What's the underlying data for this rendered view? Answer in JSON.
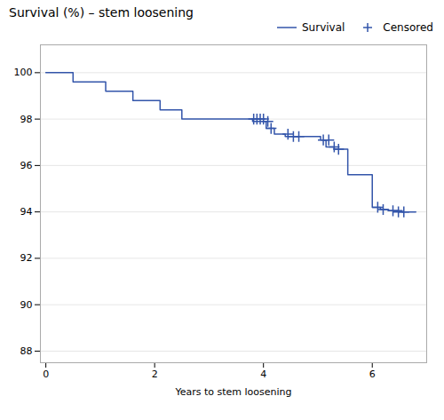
{
  "chart_data": {
    "type": "line",
    "title": "Survival (%) – stem loosening",
    "xlabel": "Years to stem loosening",
    "xlim": [
      -0.1,
      7.0
    ],
    "ylim": [
      87.5,
      101.2
    ],
    "xticks": [
      0,
      2,
      4,
      6
    ],
    "yticks": [
      88,
      90,
      92,
      94,
      96,
      98,
      100
    ],
    "grid": "y",
    "legend": "upper right",
    "series": [
      {
        "name": "Survival",
        "type": "line",
        "color": "#3355AA",
        "x": [
          0.0,
          0.5,
          0.5,
          1.1,
          1.1,
          1.6,
          1.6,
          2.1,
          2.1,
          2.5,
          2.5,
          3.8,
          3.8,
          4.05,
          4.05,
          4.2,
          4.2,
          4.4,
          4.4,
          5.05,
          5.05,
          5.15,
          5.15,
          5.3,
          5.3,
          5.55,
          5.55,
          6.0,
          6.0,
          6.15,
          6.15,
          6.3,
          6.3,
          6.55,
          6.55,
          6.8
        ],
        "values": [
          100.0,
          100.0,
          99.6,
          99.6,
          99.2,
          99.2,
          98.8,
          98.8,
          98.4,
          98.4,
          98.0,
          98.0,
          97.9,
          97.9,
          97.6,
          97.6,
          97.35,
          97.35,
          97.25,
          97.25,
          97.1,
          97.1,
          96.8,
          96.8,
          96.7,
          96.7,
          95.6,
          95.6,
          94.2,
          94.2,
          94.1,
          94.1,
          94.05,
          94.05,
          94.0,
          94.0
        ]
      },
      {
        "name": "Censored",
        "type": "scatter",
        "marker": "+",
        "color": "#3355AA",
        "x": [
          3.82,
          3.88,
          3.94,
          4.0,
          4.08,
          4.14,
          4.45,
          4.55,
          4.65,
          5.1,
          5.2,
          5.3,
          5.38,
          6.1,
          6.2,
          6.38,
          6.48,
          6.58
        ],
        "values": [
          98.0,
          98.0,
          98.0,
          98.0,
          97.9,
          97.6,
          97.35,
          97.25,
          97.25,
          97.1,
          97.1,
          96.8,
          96.7,
          94.2,
          94.1,
          94.05,
          94.0,
          94.0
        ]
      }
    ]
  }
}
